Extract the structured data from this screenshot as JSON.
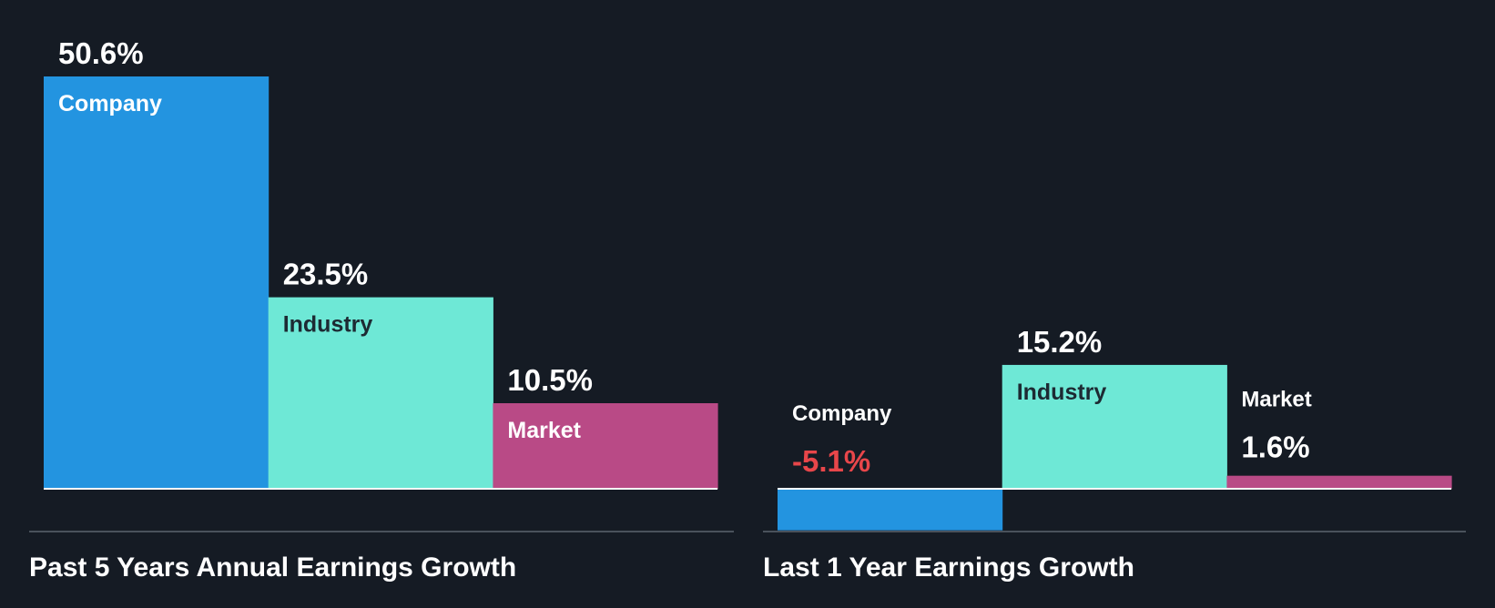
{
  "chart_data": [
    {
      "type": "bar",
      "title": "Past 5 Years Annual Earnings Growth",
      "categories": [
        "Company",
        "Industry",
        "Market"
      ],
      "values": [
        50.6,
        23.5,
        10.5
      ],
      "value_labels": [
        "50.6%",
        "23.5%",
        "10.5%"
      ],
      "colors": [
        "#2394e0",
        "#6ee8d6",
        "#b94a86"
      ],
      "label_colors": [
        "#ffffff",
        "#1d2a33",
        "#ffffff"
      ],
      "xlabel": "",
      "ylabel": "",
      "ylim": [
        -5.3,
        50.6
      ],
      "grid": false
    },
    {
      "type": "bar",
      "title": "Last 1 Year Earnings Growth",
      "categories": [
        "Company",
        "Industry",
        "Market"
      ],
      "values": [
        -5.1,
        15.2,
        1.6
      ],
      "value_labels": [
        "-5.1%",
        "15.2%",
        "1.6%"
      ],
      "colors": [
        "#2394e0",
        "#6ee8d6",
        "#b94a86"
      ],
      "label_colors": [
        "#ffffff",
        "#1d2a33",
        "#ffffff"
      ],
      "negative_value_color": "#e8464a",
      "xlabel": "",
      "ylabel": "",
      "ylim": [
        -5.3,
        50.6
      ],
      "grid": false
    }
  ]
}
